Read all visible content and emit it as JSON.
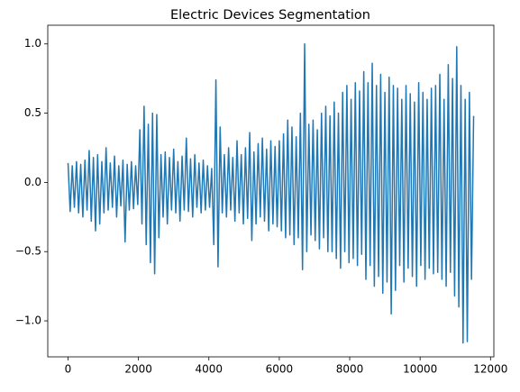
{
  "chart_data": {
    "type": "line",
    "title": "Electric Devices Segmentation",
    "color": "#1f77b4",
    "x": [
      0,
      60,
      120,
      180,
      240,
      300,
      360,
      420,
      480,
      540,
      600,
      660,
      720,
      780,
      840,
      900,
      960,
      1020,
      1080,
      1140,
      1200,
      1260,
      1320,
      1380,
      1440,
      1500,
      1560,
      1620,
      1680,
      1740,
      1800,
      1860,
      1920,
      1980,
      2040,
      2100,
      2160,
      2220,
      2280,
      2340,
      2400,
      2460,
      2520,
      2580,
      2640,
      2700,
      2760,
      2820,
      2880,
      2940,
      3000,
      3060,
      3120,
      3180,
      3240,
      3300,
      3360,
      3420,
      3480,
      3540,
      3600,
      3660,
      3720,
      3780,
      3840,
      3900,
      3960,
      4020,
      4080,
      4140,
      4200,
      4260,
      4320,
      4380,
      4440,
      4500,
      4560,
      4620,
      4680,
      4740,
      4800,
      4860,
      4920,
      4980,
      5040,
      5100,
      5160,
      5220,
      5280,
      5340,
      5400,
      5460,
      5520,
      5580,
      5640,
      5700,
      5760,
      5820,
      5880,
      5940,
      6000,
      6060,
      6120,
      6180,
      6240,
      6300,
      6360,
      6420,
      6480,
      6540,
      6600,
      6660,
      6720,
      6780,
      6840,
      6900,
      6960,
      7020,
      7080,
      7140,
      7200,
      7260,
      7320,
      7380,
      7440,
      7500,
      7560,
      7620,
      7680,
      7740,
      7800,
      7860,
      7920,
      7980,
      8040,
      8100,
      8160,
      8220,
      8280,
      8340,
      8400,
      8460,
      8520,
      8580,
      8640,
      8700,
      8760,
      8820,
      8880,
      8940,
      9000,
      9060,
      9120,
      9180,
      9240,
      9300,
      9360,
      9420,
      9480,
      9540,
      9600,
      9660,
      9720,
      9780,
      9840,
      9900,
      9960,
      10020,
      10080,
      10140,
      10200,
      10260,
      10320,
      10380,
      10440,
      10500,
      10560,
      10620,
      10680,
      10740,
      10800,
      10860,
      10920,
      10980,
      11040,
      11100,
      11160,
      11220,
      11280,
      11340,
      11400,
      11460,
      11520
    ],
    "values": [
      0.14,
      -0.21,
      0.12,
      -0.18,
      0.15,
      -0.22,
      0.13,
      -0.25,
      0.16,
      -0.2,
      0.23,
      -0.28,
      0.18,
      -0.35,
      0.2,
      -0.3,
      0.15,
      -0.22,
      0.25,
      -0.2,
      0.14,
      -0.18,
      0.19,
      -0.25,
      0.12,
      -0.17,
      0.16,
      -0.43,
      0.13,
      -0.2,
      0.15,
      -0.19,
      0.12,
      -0.16,
      0.38,
      -0.3,
      0.55,
      -0.45,
      0.42,
      -0.58,
      0.5,
      -0.66,
      0.49,
      -0.4,
      0.2,
      -0.25,
      0.22,
      -0.3,
      0.18,
      -0.2,
      0.24,
      -0.22,
      0.15,
      -0.28,
      0.19,
      -0.2,
      0.32,
      -0.21,
      0.17,
      -0.25,
      0.2,
      -0.18,
      0.14,
      -0.22,
      0.16,
      -0.2,
      0.12,
      -0.18,
      0.1,
      -0.45,
      0.74,
      -0.61,
      0.4,
      -0.22,
      0.2,
      -0.25,
      0.25,
      -0.2,
      0.18,
      -0.28,
      0.3,
      -0.22,
      0.2,
      -0.3,
      0.25,
      -0.26,
      0.36,
      -0.42,
      0.22,
      -0.3,
      0.28,
      -0.25,
      0.32,
      -0.28,
      0.24,
      -0.35,
      0.3,
      -0.3,
      0.26,
      -0.32,
      0.3,
      -0.35,
      0.35,
      -0.4,
      0.45,
      -0.38,
      0.4,
      -0.45,
      0.33,
      -0.4,
      0.5,
      -0.63,
      1.0,
      -0.5,
      0.42,
      -0.38,
      0.45,
      -0.42,
      0.38,
      -0.48,
      0.5,
      -0.4,
      0.55,
      -0.5,
      0.48,
      -0.5,
      0.58,
      -0.55,
      0.5,
      -0.62,
      0.65,
      -0.5,
      0.7,
      -0.58,
      0.6,
      -0.55,
      0.72,
      -0.6,
      0.66,
      -0.52,
      0.8,
      -0.7,
      0.72,
      -0.6,
      0.86,
      -0.75,
      0.7,
      -0.68,
      0.78,
      -0.8,
      0.65,
      -0.72,
      0.76,
      -0.95,
      0.7,
      -0.78,
      0.68,
      -0.6,
      0.6,
      -0.72,
      0.7,
      -0.62,
      0.64,
      -0.68,
      0.58,
      -0.75,
      0.72,
      -0.6,
      0.65,
      -0.7,
      0.6,
      -0.62,
      0.68,
      -0.66,
      0.7,
      -0.65,
      0.78,
      -0.7,
      0.6,
      -0.75,
      0.85,
      -0.65,
      0.75,
      -0.82,
      0.98,
      -0.9,
      0.7,
      -1.16,
      0.6,
      -1.15,
      0.65,
      -0.7,
      0.48
    ],
    "xlim": [
      -576,
      12095
    ],
    "ylim": [
      -1.26,
      1.135
    ],
    "xticks": [
      0,
      2000,
      4000,
      6000,
      8000,
      10000,
      12000
    ],
    "yticks": [
      {
        "value": -1,
        "label": "−1.0"
      },
      {
        "value": -0.5,
        "label": "−0.5"
      },
      {
        "value": 0,
        "label": "0.0"
      },
      {
        "value": 0.5,
        "label": "0.5"
      },
      {
        "value": 1,
        "label": "1.0"
      }
    ]
  }
}
